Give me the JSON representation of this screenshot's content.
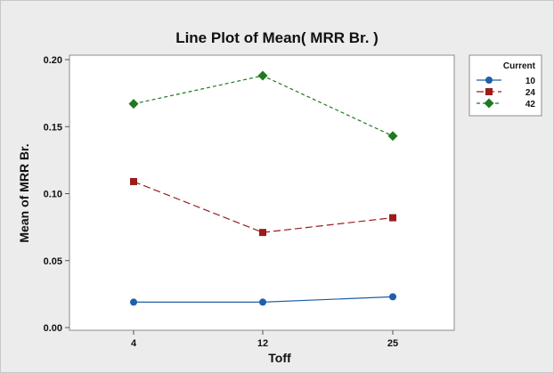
{
  "chart_data": {
    "type": "line",
    "title": "Line Plot of Mean( MRR Br. )",
    "xlabel": "Toff",
    "ylabel": "Mean of MRR Br.",
    "categories": [
      "4",
      "12",
      "25"
    ],
    "ylim": [
      0,
      0.2
    ],
    "yticks": [
      "0.00",
      "0.05",
      "0.10",
      "0.15",
      "0.20"
    ],
    "legend": {
      "title": "Current",
      "placement": "right"
    },
    "series": [
      {
        "name": "10",
        "values": [
          0.019,
          0.019,
          0.023
        ],
        "color": "#1f5fa8",
        "marker": "circle",
        "dash": "solid"
      },
      {
        "name": "24",
        "values": [
          0.109,
          0.071,
          0.082
        ],
        "color": "#9b1c1c",
        "marker": "square",
        "dash": "long-dash"
      },
      {
        "name": "42",
        "values": [
          0.167,
          0.188,
          0.143
        ],
        "color": "#1e7a1e",
        "marker": "diamond",
        "dash": "short-dash"
      }
    ]
  }
}
